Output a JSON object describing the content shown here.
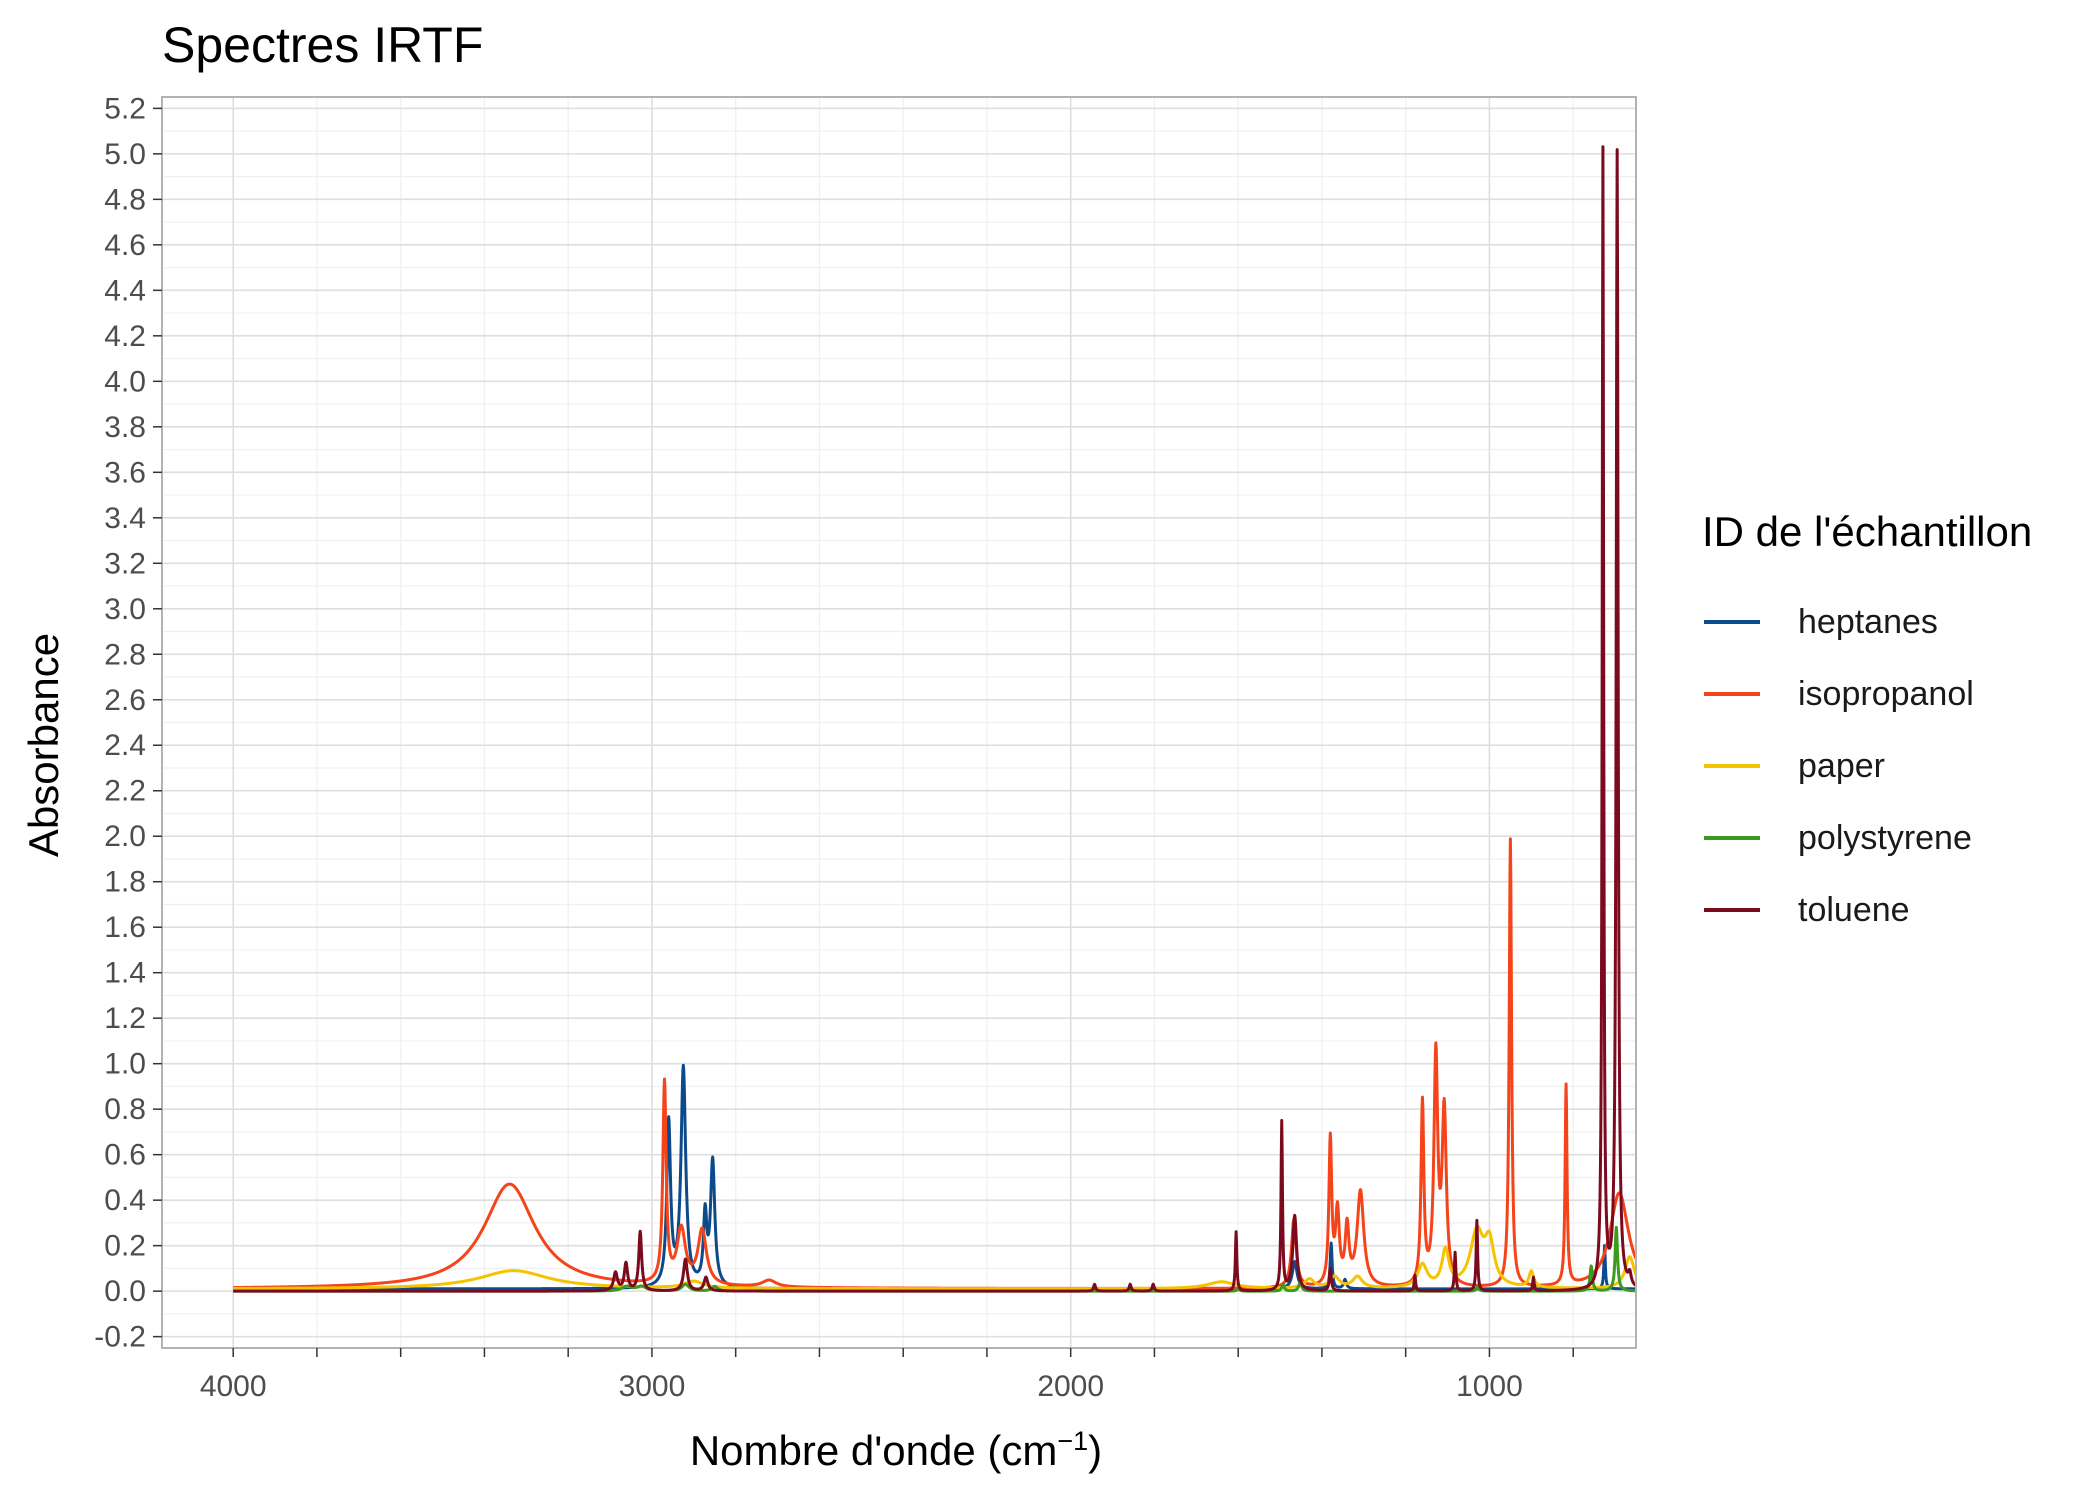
{
  "chart_data": {
    "type": "line",
    "title": "Spectres IRTF",
    "xlabel": "Nombre d'onde (cm",
    "xlabel_sup": "−1",
    "xlabel_end": ")",
    "ylabel": "Absorbance",
    "xlim": [
      4170,
      650
    ],
    "x_reversed": true,
    "ylim": [
      -0.25,
      5.25
    ],
    "x_ticks": [
      4000,
      3000,
      2000,
      1000
    ],
    "x_tick_labels": [
      "4000",
      "3000",
      "2000",
      "1000"
    ],
    "y_ticks": [
      -0.2,
      0.0,
      0.2,
      0.4,
      0.6,
      0.8,
      1.0,
      1.2,
      1.4,
      1.6,
      1.8,
      2.0,
      2.2,
      2.4,
      2.6,
      2.8,
      3.0,
      3.2,
      3.4,
      3.6,
      3.8,
      4.0,
      4.2,
      4.4,
      4.6,
      4.8,
      5.0,
      5.2
    ],
    "y_tick_labels": [
      "-0.2",
      "0.0",
      "0.2",
      "0.4",
      "0.6",
      "0.8",
      "1.0",
      "1.2",
      "1.4",
      "1.6",
      "1.8",
      "2.0",
      "2.2",
      "2.4",
      "2.6",
      "2.8",
      "3.0",
      "3.2",
      "3.4",
      "3.6",
      "3.8",
      "4.0",
      "4.2",
      "4.4",
      "4.6",
      "4.8",
      "5.0",
      "5.2"
    ],
    "grid": true,
    "legend": {
      "title": "ID de l'échantillon",
      "position": "right"
    },
    "series": [
      {
        "name": "heptanes",
        "color": "#0D4A8B",
        "baseline": 0.01,
        "peaks": [
          [
            2960,
            0.72,
            8
          ],
          [
            2925,
            0.96,
            10
          ],
          [
            2873,
            0.3,
            7
          ],
          [
            2855,
            0.55,
            9
          ],
          [
            1465,
            0.12,
            10
          ],
          [
            1378,
            0.2,
            4
          ],
          [
            1345,
            0.04,
            6
          ],
          [
            725,
            0.19,
            3
          ]
        ]
      },
      {
        "name": "isopropanol",
        "color": "#F5431A",
        "baseline": 0.01,
        "peaks": [
          [
            3340,
            0.46,
            110
          ],
          [
            2970,
            0.88,
            7
          ],
          [
            2930,
            0.24,
            18
          ],
          [
            2880,
            0.24,
            18
          ],
          [
            2720,
            0.03,
            30
          ],
          [
            1467,
            0.3,
            10
          ],
          [
            1380,
            0.64,
            6
          ],
          [
            1363,
            0.32,
            8
          ],
          [
            1340,
            0.25,
            8
          ],
          [
            1308,
            0.42,
            14
          ],
          [
            1160,
            0.8,
            6
          ],
          [
            1128,
            1.0,
            8
          ],
          [
            1108,
            0.76,
            9
          ],
          [
            950,
            1.97,
            5
          ],
          [
            817,
            0.88,
            4
          ],
          [
            690,
            0.42,
            40
          ]
        ]
      },
      {
        "name": "paper",
        "color": "#F5C400",
        "baseline": 0.01,
        "peaks": [
          [
            3330,
            0.08,
            150
          ],
          [
            2900,
            0.03,
            40
          ],
          [
            1640,
            0.03,
            60
          ],
          [
            1430,
            0.04,
            20
          ],
          [
            1370,
            0.05,
            20
          ],
          [
            1315,
            0.05,
            20
          ],
          [
            1160,
            0.1,
            20
          ],
          [
            1105,
            0.16,
            15
          ],
          [
            1030,
            0.24,
            28
          ],
          [
            1000,
            0.18,
            20
          ],
          [
            900,
            0.07,
            10
          ],
          [
            665,
            0.14,
            20
          ]
        ]
      },
      {
        "name": "polystyrene",
        "color": "#3C9A1E",
        "baseline": 0.0,
        "peaks": [
          [
            3060,
            0.02,
            20
          ],
          [
            3025,
            0.02,
            20
          ],
          [
            2920,
            0.03,
            15
          ],
          [
            2850,
            0.02,
            12
          ],
          [
            1600,
            0.01,
            5
          ],
          [
            1493,
            0.03,
            5
          ],
          [
            1452,
            0.04,
            6
          ],
          [
            1028,
            0.02,
            5
          ],
          [
            757,
            0.11,
            5
          ],
          [
            697,
            0.28,
            5
          ]
        ]
      },
      {
        "name": "toluene",
        "color": "#7B0A1F",
        "baseline": 0.0,
        "peaks": [
          [
            3087,
            0.08,
            8
          ],
          [
            3062,
            0.12,
            7
          ],
          [
            3028,
            0.26,
            6
          ],
          [
            2920,
            0.14,
            8
          ],
          [
            2871,
            0.06,
            8
          ],
          [
            1943,
            0.03,
            4
          ],
          [
            1858,
            0.03,
            4
          ],
          [
            1803,
            0.03,
            4
          ],
          [
            1605,
            0.26,
            3
          ],
          [
            1496,
            0.74,
            3
          ],
          [
            1465,
            0.33,
            8
          ],
          [
            1380,
            0.1,
            4
          ],
          [
            1178,
            0.07,
            3
          ],
          [
            1082,
            0.17,
            3
          ],
          [
            1030,
            0.31,
            3
          ],
          [
            895,
            0.06,
            3
          ],
          [
            729,
            5.0,
            3
          ],
          [
            695,
            5.0,
            4
          ],
          [
            665,
            0.05,
            6
          ]
        ]
      }
    ]
  }
}
